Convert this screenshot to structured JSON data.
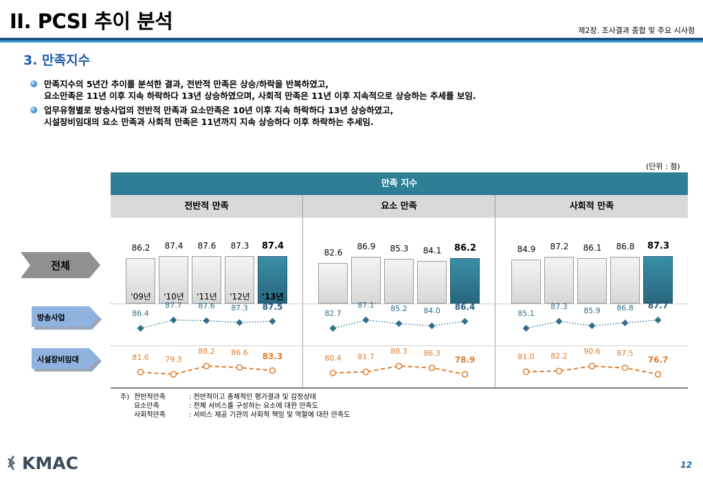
{
  "header": {
    "title": "II. PCSI 추이 분석",
    "chapter": "제2장. 조사결과 종합 및 주요 시사점"
  },
  "section": "3. 만족지수",
  "bullets": [
    {
      "line1": "만족지수의 5년간 추이를 분석한 결과, 전반적 만족은 상승/하락을 반복하였고,",
      "line2": "요소만족은 11년 이후 지속 하락하다 13년 상승하였으며, 사회적 만족은 11년 이후 지속적으로 상승하는 추세를 보임."
    },
    {
      "line1": "업무유형별로 방송사업의 전반적 만족과 요소만족은 10년 이후 지속 하락하다 13년 상승하였고,",
      "line2": "시설장비임대의 요소 만족과 사회적 만족은 11년까지 지속 상승하다 이후 하락하는 추세임."
    }
  ],
  "unit": "(단위 : 점)",
  "table": {
    "title": "만족 지수",
    "columns": [
      "전반적 만족",
      "요소 만족",
      "사회적 만족"
    ],
    "row_labels": {
      "total": "전체",
      "broadcast": "방송사업",
      "facility": "시설장비임대"
    }
  },
  "chart_data": {
    "type": "bar",
    "categories": [
      "'09년",
      "'10년",
      "'11년",
      "'12년",
      "'13년"
    ],
    "groups": [
      {
        "name": "전반적 만족",
        "total": [
          "86.2",
          "87.4",
          "87.6",
          "87.3",
          "87.4"
        ],
        "broadcast": [
          "86.4",
          "87.7",
          "87.6",
          "87.3",
          "87.5"
        ],
        "facility": [
          "81.6",
          "79.3",
          "88.2",
          "86.6",
          "83.3"
        ]
      },
      {
        "name": "요소 만족",
        "total": [
          "82.6",
          "86.9",
          "85.3",
          "84.1",
          "86.2"
        ],
        "broadcast": [
          "82.7",
          "87.1",
          "85.2",
          "84.0",
          "86.4"
        ],
        "facility": [
          "80.4",
          "81.7",
          "88.3",
          "86.3",
          "78.9"
        ]
      },
      {
        "name": "사회적 만족",
        "total": [
          "84.9",
          "87.2",
          "86.1",
          "86.8",
          "87.3"
        ],
        "broadcast": [
          "85.1",
          "87.3",
          "85.9",
          "86.8",
          "87.7"
        ],
        "facility": [
          "81.0",
          "82.2",
          "90.6",
          "87.5",
          "76.7"
        ]
      }
    ],
    "colors": {
      "highlight": "#2e7e96",
      "bar": "#e0e0e0",
      "broadcast": "#2e6e8e",
      "facility": "#e07b2a"
    }
  },
  "notes": {
    "prefix": "주)",
    "items": [
      {
        "term": "전반적만족",
        "desc": ": 전반적이고 총체적인 평가결과 및 감정상태"
      },
      {
        "term": "요소만족",
        "desc": ": 전체 서비스를 구성하는 요소에 대한 만족도"
      },
      {
        "term": "사회적만족",
        "desc": ": 서비스 제공 기관의 사회적 책임 및 역할에 대한 만족도"
      }
    ]
  },
  "footer": {
    "logo": "KMAC",
    "page": "12"
  }
}
